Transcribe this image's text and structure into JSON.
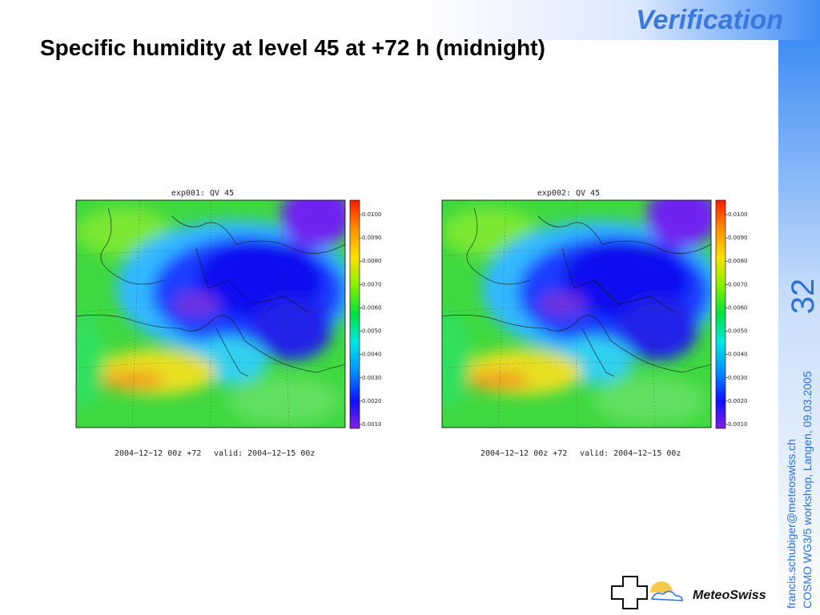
{
  "header": {
    "section": "Verification",
    "title": "Specific humidity at level 45 at +72 h (midnight)"
  },
  "panels": [
    {
      "title": "exp001: QV 45",
      "colorbar_labels": [
        "0.0100",
        "0.0090",
        "0.0080",
        "0.0070",
        "0.0060",
        "0.0050",
        "0.0040",
        "0.0030",
        "0.0020",
        "0.0010"
      ],
      "run": "2004−12−12 00z +72",
      "valid": "valid: 2004−12−15 00z"
    },
    {
      "title": "exp002: QV 45",
      "colorbar_labels": [
        "0.0100",
        "0.0090",
        "0.0080",
        "0.0070",
        "0.0060",
        "0.0050",
        "0.0040",
        "0.0030",
        "0.0020",
        "0.0010"
      ],
      "run": "2004−12−12 00z +72",
      "valid": "valid: 2004−12−15 00z"
    }
  ],
  "sidebar": {
    "slide_number": "32",
    "email": "francis.schubiger@meteoswiss.ch",
    "event": "COSMO WG3/5 workshop, Langen, 09.03.2005"
  },
  "logo": {
    "name": "MeteoSwiss"
  }
}
